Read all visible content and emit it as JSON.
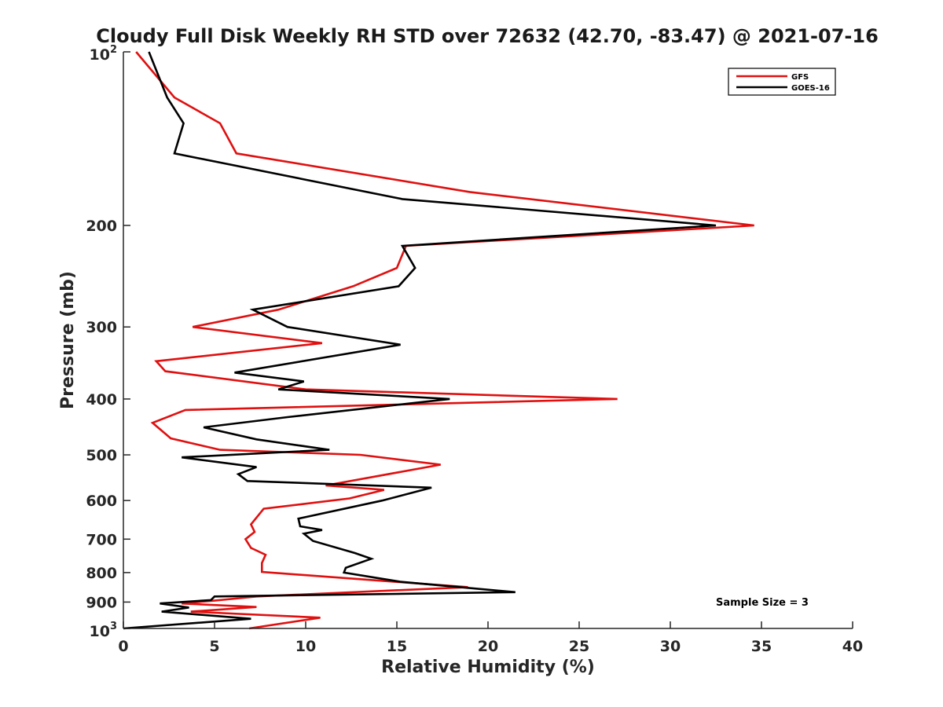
{
  "chart_data": {
    "type": "line",
    "title": "Cloudy Full Disk Weekly RH STD over 72632 (42.70, -83.47) @ 2021-07-16",
    "xlabel": "Relative Humidity (%)",
    "ylabel": "Pressure (mb)",
    "xlim": [
      0,
      40
    ],
    "ylim": [
      100,
      1000
    ],
    "yscale": "log",
    "y_reversed": true,
    "grid": false,
    "legend_position": "top-right",
    "x_ticks": [
      "0",
      "5",
      "10",
      "15",
      "20",
      "25",
      "30",
      "35",
      "40"
    ],
    "y_ticks": [
      "200",
      "300",
      "400",
      "500",
      "600",
      "700",
      "800",
      "900"
    ],
    "y_tick_min_base": "10",
    "y_tick_min_exp": "2",
    "y_tick_max_base": "10",
    "y_tick_max_exp": "3",
    "annotation": "Sample Size = 3",
    "series": [
      {
        "name": "GFS",
        "color": "#e01010",
        "points": [
          [
            0.7,
            100
          ],
          [
            2.8,
            120
          ],
          [
            5.3,
            133
          ],
          [
            6.2,
            150
          ],
          [
            19.0,
            175
          ],
          [
            34.6,
            200
          ],
          [
            15.5,
            217
          ],
          [
            15.0,
            237
          ],
          [
            12.6,
            255
          ],
          [
            8.5,
            280
          ],
          [
            3.8,
            300
          ],
          [
            10.9,
            320
          ],
          [
            1.8,
            344
          ],
          [
            2.3,
            358
          ],
          [
            10.0,
            385
          ],
          [
            27.1,
            400
          ],
          [
            3.4,
            418
          ],
          [
            1.6,
            440
          ],
          [
            2.6,
            468
          ],
          [
            5.3,
            490
          ],
          [
            13.0,
            500
          ],
          [
            17.4,
            520
          ],
          [
            11.1,
            565
          ],
          [
            14.3,
            575
          ],
          [
            12.4,
            595
          ],
          [
            7.7,
            620
          ],
          [
            7.0,
            660
          ],
          [
            7.2,
            680
          ],
          [
            6.7,
            700
          ],
          [
            7.0,
            725
          ],
          [
            7.8,
            745
          ],
          [
            7.6,
            770
          ],
          [
            7.6,
            798
          ],
          [
            18.9,
            848
          ],
          [
            7.3,
            880
          ],
          [
            5.0,
            895
          ],
          [
            3.2,
            905
          ],
          [
            7.3,
            918
          ],
          [
            3.7,
            935
          ],
          [
            10.8,
            958
          ],
          [
            6.9,
            1000
          ]
        ]
      },
      {
        "name": "GOES-16",
        "color": "#000000",
        "points": [
          [
            1.4,
            100
          ],
          [
            2.4,
            120
          ],
          [
            3.3,
            133
          ],
          [
            2.8,
            150
          ],
          [
            15.3,
            180
          ],
          [
            32.5,
            200
          ],
          [
            15.3,
            217
          ],
          [
            16.0,
            237
          ],
          [
            15.1,
            255
          ],
          [
            7.1,
            280
          ],
          [
            9.0,
            300
          ],
          [
            15.2,
            322
          ],
          [
            6.1,
            360
          ],
          [
            9.9,
            373
          ],
          [
            8.5,
            385
          ],
          [
            17.9,
            400
          ],
          [
            9.0,
            430
          ],
          [
            4.4,
            448
          ],
          [
            7.3,
            470
          ],
          [
            11.3,
            490
          ],
          [
            3.2,
            505
          ],
          [
            7.3,
            525
          ],
          [
            6.3,
            540
          ],
          [
            6.8,
            555
          ],
          [
            16.9,
            570
          ],
          [
            14.2,
            600
          ],
          [
            9.6,
            645
          ],
          [
            9.7,
            665
          ],
          [
            10.9,
            675
          ],
          [
            9.9,
            685
          ],
          [
            10.4,
            705
          ],
          [
            12.7,
            740
          ],
          [
            13.6,
            757
          ],
          [
            12.2,
            785
          ],
          [
            12.1,
            800
          ],
          [
            15.2,
            830
          ],
          [
            21.5,
            865
          ],
          [
            5.0,
            880
          ],
          [
            4.8,
            893
          ],
          [
            2.0,
            905
          ],
          [
            3.6,
            920
          ],
          [
            2.1,
            935
          ],
          [
            7.0,
            962
          ],
          [
            0.0,
            1000
          ]
        ]
      }
    ]
  }
}
